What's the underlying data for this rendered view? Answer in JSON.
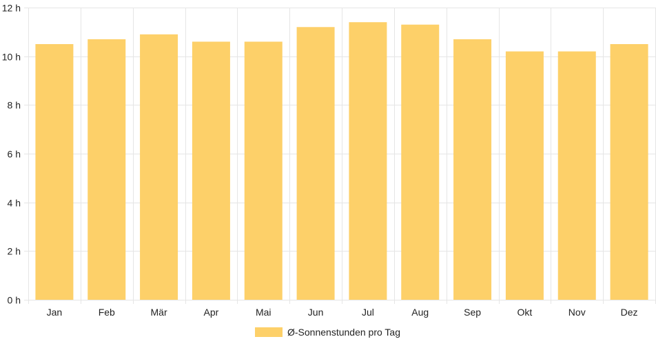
{
  "chart_data": {
    "type": "bar",
    "categories": [
      "Jan",
      "Feb",
      "Mär",
      "Apr",
      "Mai",
      "Jun",
      "Jul",
      "Aug",
      "Sep",
      "Okt",
      "Nov",
      "Dez"
    ],
    "series": [
      {
        "name": "Ø-Sonnenstunden pro Tag",
        "values": [
          10.5,
          10.7,
          10.9,
          10.6,
          10.6,
          11.2,
          11.4,
          11.3,
          10.7,
          10.2,
          10.2,
          10.5
        ]
      }
    ],
    "y_unit_suffix": " h",
    "ylim": [
      0,
      12
    ],
    "yticks": [
      0,
      2,
      4,
      6,
      8,
      10,
      12
    ],
    "grid": true,
    "legend_position": "bottom",
    "colors": {
      "bar": "#fdd069",
      "grid": "#e5e5e5",
      "axis_text": "#222222"
    }
  }
}
